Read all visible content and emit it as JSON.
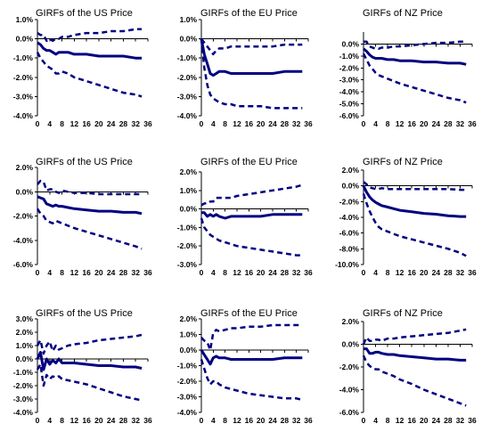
{
  "chart_data": [
    {
      "type": "line",
      "title": "GIRFs of the US Price",
      "ylim": [
        -0.04,
        0.01
      ],
      "yticks": [
        "1.0%",
        "0.0%",
        "-1.0%",
        "-2.0%",
        "-3.0%",
        "-4.0%"
      ],
      "ytick_values": [
        0.01,
        0.0,
        -0.01,
        -0.02,
        -0.03,
        -0.04
      ],
      "xlim": [
        0,
        36
      ],
      "xticks": [
        "0",
        "4",
        "8",
        "12",
        "16",
        "20",
        "24",
        "28",
        "32",
        "36"
      ],
      "x": [
        0,
        1,
        2,
        3,
        4,
        5,
        6,
        7,
        8,
        10,
        12,
        16,
        20,
        24,
        28,
        32,
        34
      ],
      "series": [
        {
          "style": "dashed",
          "values": [
            0.003,
            0.002,
            0.002,
            -0.001,
            0.0,
            -0.001,
            0.0,
            0.0,
            0.001,
            0.001,
            0.002,
            0.003,
            0.003,
            0.004,
            0.004,
            0.005,
            0.005
          ]
        },
        {
          "style": "solid",
          "values": [
            -0.002,
            -0.003,
            -0.005,
            -0.006,
            -0.006,
            -0.007,
            -0.008,
            -0.007,
            -0.007,
            -0.007,
            -0.008,
            -0.008,
            -0.009,
            -0.009,
            -0.009,
            -0.01,
            -0.01
          ]
        },
        {
          "style": "dashed",
          "values": [
            -0.007,
            -0.01,
            -0.012,
            -0.014,
            -0.015,
            -0.016,
            -0.018,
            -0.018,
            -0.017,
            -0.018,
            -0.02,
            -0.022,
            -0.024,
            -0.026,
            -0.028,
            -0.029,
            -0.03
          ]
        }
      ]
    },
    {
      "type": "line",
      "title": "GIRFs of the EU Price",
      "ylim": [
        -0.04,
        0.01
      ],
      "yticks": [
        "1.0%",
        "0.0%",
        "-1.0%",
        "-2.0%",
        "-3.0%",
        "-4.0%"
      ],
      "ytick_values": [
        0.01,
        0.0,
        -0.01,
        -0.02,
        -0.03,
        -0.04
      ],
      "xlim": [
        0,
        36
      ],
      "xticks": [
        "0",
        "4",
        "8",
        "12",
        "16",
        "20",
        "24",
        "28",
        "32",
        "36"
      ],
      "x": [
        0,
        1,
        2,
        3,
        4,
        5,
        6,
        8,
        10,
        12,
        16,
        20,
        24,
        28,
        32,
        34
      ],
      "series": [
        {
          "style": "dashed",
          "values": [
            0.0,
            -0.002,
            -0.004,
            -0.006,
            -0.008,
            -0.006,
            -0.005,
            -0.005,
            -0.004,
            -0.004,
            -0.004,
            -0.004,
            -0.004,
            -0.003,
            -0.003,
            -0.003
          ]
        },
        {
          "style": "solid",
          "values": [
            0.0,
            -0.008,
            -0.013,
            -0.018,
            -0.019,
            -0.018,
            -0.017,
            -0.017,
            -0.018,
            -0.018,
            -0.018,
            -0.018,
            -0.018,
            -0.017,
            -0.017,
            -0.017
          ]
        },
        {
          "style": "dashed",
          "values": [
            0.0,
            -0.015,
            -0.024,
            -0.029,
            -0.031,
            -0.032,
            -0.033,
            -0.034,
            -0.034,
            -0.035,
            -0.035,
            -0.035,
            -0.036,
            -0.036,
            -0.036,
            -0.036
          ]
        }
      ]
    },
    {
      "type": "line",
      "title": "GIRFs of NZ Price",
      "ylim": [
        -0.06,
        0.01
      ],
      "yticks": [
        "0.0%",
        "-1.0%",
        "-2.0%",
        "-3.0%",
        "-4.0%",
        "-5.0%",
        "-6.0%"
      ],
      "ytick_values": [
        0.0,
        -0.01,
        -0.02,
        -0.03,
        -0.04,
        -0.05,
        -0.06
      ],
      "xlim": [
        0,
        36
      ],
      "xticks": [
        "0",
        "4",
        "8",
        "12",
        "16",
        "20",
        "24",
        "28",
        "32",
        "36"
      ],
      "x": [
        0,
        1,
        2,
        3,
        4,
        5,
        6,
        8,
        10,
        12,
        16,
        20,
        24,
        28,
        32,
        34
      ],
      "series": [
        {
          "style": "dashed",
          "values": [
            0.002,
            0.002,
            -0.002,
            -0.003,
            -0.004,
            -0.004,
            -0.003,
            -0.003,
            -0.002,
            -0.002,
            -0.001,
            0.0,
            0.001,
            0.001,
            0.002,
            0.002
          ]
        },
        {
          "style": "solid",
          "values": [
            -0.004,
            -0.006,
            -0.009,
            -0.011,
            -0.012,
            -0.012,
            -0.012,
            -0.013,
            -0.013,
            -0.014,
            -0.014,
            -0.015,
            -0.015,
            -0.016,
            -0.016,
            -0.017
          ]
        },
        {
          "style": "dashed",
          "values": [
            -0.008,
            -0.013,
            -0.018,
            -0.021,
            -0.024,
            -0.026,
            -0.027,
            -0.029,
            -0.031,
            -0.033,
            -0.036,
            -0.039,
            -0.042,
            -0.045,
            -0.047,
            -0.049
          ]
        }
      ]
    },
    {
      "type": "line",
      "title": "GIRFs of the US Price",
      "ylim": [
        -0.06,
        0.02
      ],
      "yticks": [
        "2.0%",
        "0.0%",
        "-2.0%",
        "-4.0%",
        "-6.0%"
      ],
      "ytick_values": [
        0.02,
        0.0,
        -0.02,
        -0.04,
        -0.06
      ],
      "xlim": [
        0,
        36
      ],
      "xticks": [
        "0",
        "4",
        "8",
        "12",
        "16",
        "20",
        "24",
        "28",
        "32",
        "36"
      ],
      "x": [
        0,
        1,
        2,
        3,
        4,
        5,
        6,
        7,
        8,
        10,
        12,
        16,
        20,
        24,
        28,
        32,
        34
      ],
      "series": [
        {
          "style": "dashed",
          "values": [
            0.006,
            0.009,
            0.008,
            0.001,
            0.002,
            0.002,
            0.0,
            -0.001,
            0.001,
            0.0,
            -0.001,
            -0.001,
            -0.002,
            -0.002,
            -0.002,
            -0.002,
            -0.002
          ]
        },
        {
          "style": "solid",
          "values": [
            -0.004,
            -0.005,
            -0.006,
            -0.01,
            -0.011,
            -0.012,
            -0.011,
            -0.012,
            -0.012,
            -0.013,
            -0.014,
            -0.015,
            -0.016,
            -0.016,
            -0.017,
            -0.017,
            -0.018
          ]
        },
        {
          "style": "dashed",
          "values": [
            -0.014,
            -0.018,
            -0.02,
            -0.024,
            -0.025,
            -0.026,
            -0.024,
            -0.025,
            -0.026,
            -0.028,
            -0.03,
            -0.033,
            -0.036,
            -0.039,
            -0.042,
            -0.045,
            -0.047
          ]
        }
      ]
    },
    {
      "type": "line",
      "title": "GIRFs of the EU Price",
      "ylim": [
        -0.03,
        0.02
      ],
      "yticks": [
        "2.0%",
        "1.0%",
        "0.0%",
        "-1.0%",
        "-2.0%",
        "-3.0%"
      ],
      "ytick_values": [
        0.02,
        0.01,
        0.0,
        -0.01,
        -0.02,
        -0.03
      ],
      "xlim": [
        0,
        36
      ],
      "xticks": [
        "0",
        "4",
        "8",
        "12",
        "16",
        "20",
        "24",
        "28",
        "32",
        "36"
      ],
      "x": [
        0,
        1,
        2,
        3,
        4,
        5,
        6,
        8,
        10,
        12,
        16,
        20,
        24,
        28,
        32,
        34
      ],
      "series": [
        {
          "style": "dashed",
          "values": [
            0.002,
            0.003,
            0.003,
            0.004,
            0.004,
            0.006,
            0.006,
            0.006,
            0.006,
            0.007,
            0.008,
            0.009,
            0.01,
            0.011,
            0.012,
            0.013
          ]
        },
        {
          "style": "solid",
          "values": [
            -0.002,
            -0.002,
            -0.004,
            -0.003,
            -0.004,
            -0.003,
            -0.004,
            -0.005,
            -0.004,
            -0.004,
            -0.004,
            -0.004,
            -0.003,
            -0.003,
            -0.003,
            -0.003
          ]
        },
        {
          "style": "dashed",
          "values": [
            -0.005,
            -0.01,
            -0.012,
            -0.014,
            -0.015,
            -0.016,
            -0.017,
            -0.018,
            -0.019,
            -0.02,
            -0.021,
            -0.022,
            -0.023,
            -0.024,
            -0.025,
            -0.025
          ]
        }
      ]
    },
    {
      "type": "line",
      "title": "GIRFs of NZ Price",
      "ylim": [
        -0.1,
        0.02
      ],
      "yticks": [
        "2.0%",
        "0.0%",
        "-2.0%",
        "-4.0%",
        "-6.0%",
        "-8.0%",
        "-10.0%"
      ],
      "ytick_values": [
        0.02,
        0.0,
        -0.02,
        -0.04,
        -0.06,
        -0.08,
        -0.1
      ],
      "xlim": [
        0,
        36
      ],
      "xticks": [
        "0",
        "4",
        "8",
        "12",
        "16",
        "20",
        "24",
        "28",
        "32",
        "36"
      ],
      "x": [
        0,
        1,
        2,
        3,
        4,
        5,
        6,
        8,
        10,
        12,
        16,
        20,
        24,
        28,
        32,
        34
      ],
      "series": [
        {
          "style": "dashed",
          "values": [
            0.005,
            0.002,
            -0.002,
            -0.003,
            -0.004,
            -0.004,
            -0.003,
            -0.004,
            -0.004,
            -0.004,
            -0.004,
            -0.004,
            -0.004,
            -0.004,
            -0.005,
            -0.005
          ]
        },
        {
          "style": "solid",
          "values": [
            0.0,
            -0.008,
            -0.014,
            -0.018,
            -0.021,
            -0.023,
            -0.025,
            -0.027,
            -0.029,
            -0.031,
            -0.033,
            -0.035,
            -0.036,
            -0.038,
            -0.039,
            -0.039
          ]
        },
        {
          "style": "dashed",
          "values": [
            -0.01,
            -0.022,
            -0.032,
            -0.04,
            -0.047,
            -0.052,
            -0.055,
            -0.058,
            -0.061,
            -0.064,
            -0.068,
            -0.072,
            -0.076,
            -0.08,
            -0.085,
            -0.089
          ]
        }
      ]
    },
    {
      "type": "line",
      "title": "GIRFs of the US Price",
      "ylim": [
        -0.04,
        0.03
      ],
      "yticks": [
        "3.0%",
        "2.0%",
        "1.0%",
        "0.0%",
        "-1.0%",
        "-2.0%",
        "-3.0%",
        "-4.0%"
      ],
      "ytick_values": [
        0.03,
        0.02,
        0.01,
        0.0,
        -0.01,
        -0.02,
        -0.03,
        -0.04
      ],
      "xlim": [
        0,
        36
      ],
      "xticks": [
        "0",
        "4",
        "8",
        "12",
        "16",
        "20",
        "24",
        "28",
        "32",
        "36"
      ],
      "x": [
        0,
        1,
        2,
        3,
        4,
        5,
        6,
        7,
        8,
        10,
        12,
        16,
        20,
        24,
        28,
        32,
        34
      ],
      "series": [
        {
          "style": "dashed",
          "values": [
            0.01,
            0.014,
            0.004,
            0.01,
            0.013,
            0.006,
            0.01,
            0.007,
            0.008,
            0.01,
            0.011,
            0.012,
            0.014,
            0.015,
            0.016,
            0.017,
            0.018
          ]
        },
        {
          "style": "solid",
          "values": [
            0.0,
            0.005,
            -0.008,
            0.0,
            -0.004,
            -0.001,
            -0.003,
            0.0,
            -0.003,
            -0.003,
            -0.003,
            -0.004,
            -0.005,
            -0.005,
            -0.006,
            -0.006,
            -0.007
          ]
        },
        {
          "style": "dashed",
          "values": [
            -0.008,
            -0.004,
            -0.02,
            -0.012,
            -0.015,
            -0.013,
            -0.014,
            -0.013,
            -0.015,
            -0.016,
            -0.017,
            -0.019,
            -0.022,
            -0.025,
            -0.028,
            -0.03,
            -0.031
          ]
        }
      ]
    },
    {
      "type": "line",
      "title": "GIRFs of the EU Price",
      "ylim": [
        -0.04,
        0.02
      ],
      "yticks": [
        "2.0%",
        "1.0%",
        "0.0%",
        "-1.0%",
        "-2.0%",
        "-3.0%",
        "-4.0%"
      ],
      "ytick_values": [
        0.02,
        0.01,
        0.0,
        -0.01,
        -0.02,
        -0.03,
        -0.04
      ],
      "xlim": [
        0,
        36
      ],
      "xticks": [
        "0",
        "4",
        "8",
        "12",
        "16",
        "20",
        "24",
        "28",
        "32",
        "36"
      ],
      "x": [
        0,
        1,
        2,
        3,
        4,
        5,
        6,
        8,
        10,
        12,
        16,
        20,
        24,
        28,
        32,
        34
      ],
      "series": [
        {
          "style": "dashed",
          "values": [
            0.008,
            0.006,
            0.005,
            0.0,
            0.011,
            0.013,
            0.012,
            0.013,
            0.014,
            0.014,
            0.015,
            0.015,
            0.016,
            0.016,
            0.016,
            0.016
          ]
        },
        {
          "style": "solid",
          "values": [
            0.0,
            -0.003,
            -0.006,
            -0.009,
            -0.005,
            -0.004,
            -0.005,
            -0.005,
            -0.006,
            -0.006,
            -0.006,
            -0.006,
            -0.006,
            -0.005,
            -0.005,
            -0.005
          ]
        },
        {
          "style": "dashed",
          "values": [
            -0.006,
            -0.012,
            -0.018,
            -0.022,
            -0.02,
            -0.02,
            -0.022,
            -0.024,
            -0.025,
            -0.026,
            -0.028,
            -0.029,
            -0.03,
            -0.031,
            -0.031,
            -0.032
          ]
        }
      ]
    },
    {
      "type": "line",
      "title": "GIRFs of NZ Price",
      "ylim": [
        -0.06,
        0.02
      ],
      "yticks": [
        "2.0%",
        "0.0%",
        "-2.0%",
        "-4.0%",
        "-6.0%"
      ],
      "ytick_values": [
        0.02,
        0.0,
        -0.02,
        -0.04,
        -0.06
      ],
      "xlim": [
        0,
        36
      ],
      "xticks": [
        "0",
        "4",
        "8",
        "12",
        "16",
        "20",
        "24",
        "28",
        "32",
        "36"
      ],
      "x": [
        0,
        1,
        2,
        3,
        4,
        5,
        6,
        8,
        10,
        12,
        16,
        20,
        24,
        28,
        32,
        34
      ],
      "series": [
        {
          "style": "dashed",
          "values": [
            0.0,
            0.006,
            0.003,
            0.003,
            0.004,
            0.004,
            0.003,
            0.005,
            0.005,
            0.006,
            0.007,
            0.008,
            0.009,
            0.01,
            0.012,
            0.013
          ]
        },
        {
          "style": "solid",
          "values": [
            -0.004,
            -0.004,
            -0.008,
            -0.008,
            -0.007,
            -0.007,
            -0.008,
            -0.009,
            -0.009,
            -0.01,
            -0.011,
            -0.012,
            -0.013,
            -0.013,
            -0.014,
            -0.014
          ]
        },
        {
          "style": "dashed",
          "values": [
            -0.01,
            -0.016,
            -0.019,
            -0.021,
            -0.022,
            -0.022,
            -0.024,
            -0.026,
            -0.028,
            -0.031,
            -0.035,
            -0.04,
            -0.044,
            -0.048,
            -0.052,
            -0.054
          ]
        }
      ]
    }
  ]
}
